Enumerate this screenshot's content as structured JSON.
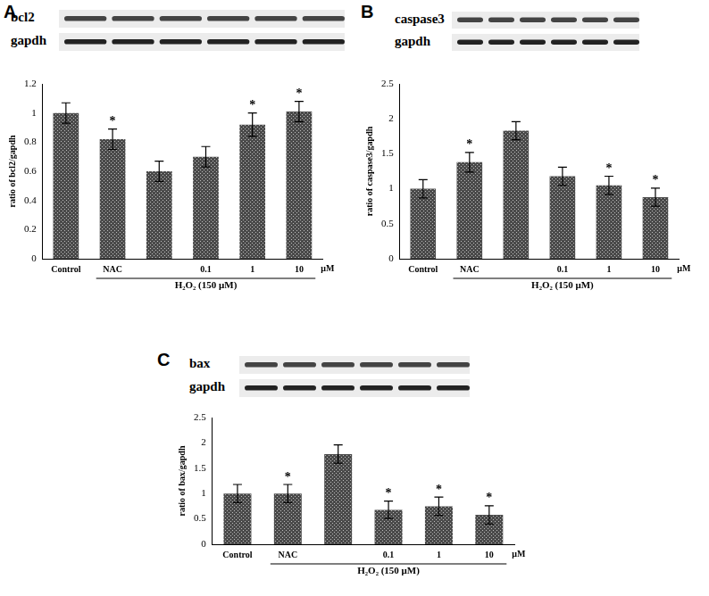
{
  "chart_data": [
    {
      "panel": "A",
      "type": "bar",
      "blot_labels": [
        "bcl2",
        "gapdh"
      ],
      "categories": [
        "Control",
        "NAC",
        null,
        "0.1",
        "1",
        "10"
      ],
      "values": [
        1.0,
        0.82,
        0.6,
        0.7,
        0.92,
        1.01
      ],
      "errors": [
        0.07,
        0.07,
        0.07,
        0.07,
        0.08,
        0.07
      ],
      "significance": [
        null,
        "*",
        null,
        null,
        "*",
        "*"
      ],
      "color": "#4a4a4a",
      "ylim": [
        0,
        1.2
      ],
      "yticks": [
        0,
        0.2,
        0.4,
        0.6,
        0.8,
        1,
        1.2
      ],
      "y_label": "ratio of bcl2/gapdh",
      "x_unit": "μM",
      "treatment_label": "H₂O₂ (150 μM)",
      "grid": false
    },
    {
      "panel": "B",
      "type": "bar",
      "blot_labels": [
        "caspase3",
        "gapdh"
      ],
      "categories": [
        "Control",
        "NAC",
        null,
        "0.1",
        "1",
        "10"
      ],
      "values": [
        1.0,
        1.38,
        1.83,
        1.18,
        1.05,
        0.88
      ],
      "errors": [
        0.13,
        0.14,
        0.13,
        0.13,
        0.13,
        0.13
      ],
      "significance": [
        null,
        "*",
        null,
        null,
        "*",
        "*"
      ],
      "color": "#4a4a4a",
      "ylim": [
        0,
        2.5
      ],
      "yticks": [
        0,
        0.5,
        1,
        1.5,
        2,
        2.5
      ],
      "y_label": "ratio of caspase3/gapdh",
      "x_unit": "μM",
      "treatment_label": "H₂O₂ (150 μM)",
      "grid": false
    },
    {
      "panel": "C",
      "type": "bar",
      "blot_labels": [
        "bax",
        "gapdh"
      ],
      "categories": [
        "Control",
        "NAC",
        null,
        "0.1",
        "1",
        "10"
      ],
      "values": [
        1.0,
        1.0,
        1.78,
        0.68,
        0.75,
        0.58
      ],
      "errors": [
        0.18,
        0.18,
        0.18,
        0.17,
        0.18,
        0.18
      ],
      "significance": [
        null,
        "*",
        null,
        "*",
        "*",
        "*"
      ],
      "color": "#4a4a4a",
      "ylim": [
        0,
        2.5
      ],
      "yticks": [
        0,
        0.5,
        1,
        1.5,
        2,
        2.5
      ],
      "y_label": "ratio of bax/gapdh",
      "x_unit": "μM",
      "treatment_label": "H₂O₂ (150 μM)",
      "grid": false
    }
  ]
}
